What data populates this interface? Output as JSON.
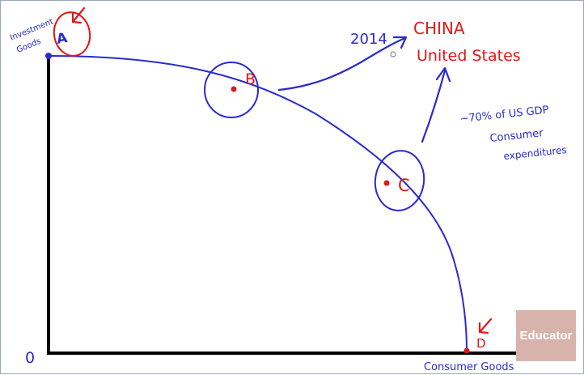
{
  "diagram": {
    "origin_label": "0",
    "y_axis_label_line1": "Investment",
    "y_axis_label_line2": "Goods",
    "x_axis_label": "Consumer Goods",
    "points": [
      {
        "id": "A",
        "label": "A"
      },
      {
        "id": "B",
        "label": "B"
      },
      {
        "id": "C",
        "label": "C"
      },
      {
        "id": "D",
        "label": "D"
      }
    ],
    "year_label": "2014",
    "country_china": "CHINA",
    "country_us": "United States",
    "gdp_note_line1": "~70% of US GDP",
    "gdp_note_line2": "Consumer",
    "gdp_note_line3": "expenditures"
  },
  "colors": {
    "curve": "#2a2ad0",
    "annotation_red": "#e01818",
    "axes": "#000000",
    "logo_bg": "#d8b3ab"
  },
  "logo": {
    "text": "Educator"
  }
}
